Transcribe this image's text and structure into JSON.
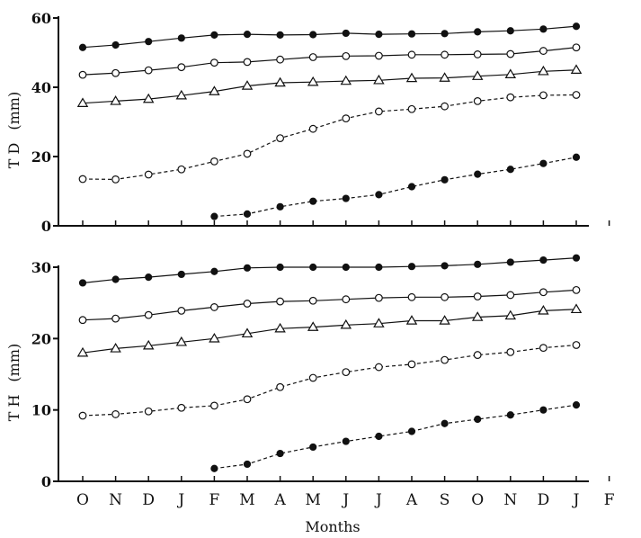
{
  "x_label": "Months",
  "x_ticks": [
    "O",
    "N",
    "D",
    "J",
    "F",
    "M",
    "A",
    "M",
    "J",
    "J",
    "A",
    "S",
    "O",
    "N",
    "D",
    "J",
    "F"
  ],
  "chart_data": [
    {
      "type": "line",
      "id": "td",
      "ylabel": "T D",
      "yunit": "(mm)",
      "ylim": [
        0,
        60
      ],
      "yticks": [
        0,
        20,
        40,
        60
      ],
      "series": [
        {
          "marker": "filled-circle",
          "line": "solid",
          "x": [
            0,
            1,
            2,
            3,
            4,
            5,
            6,
            7,
            8,
            9,
            10,
            11,
            12,
            13,
            14,
            15
          ],
          "y": [
            51.5,
            52.2,
            53.2,
            54.2,
            55.1,
            55.3,
            55.1,
            55.2,
            55.6,
            55.3,
            55.4,
            55.5,
            56,
            56.3,
            56.8,
            57.6
          ]
        },
        {
          "marker": "open-circle",
          "line": "solid",
          "x": [
            0,
            1,
            2,
            3,
            4,
            5,
            6,
            7,
            8,
            9,
            10,
            11,
            12,
            13,
            14,
            15
          ],
          "y": [
            43.6,
            44.1,
            44.9,
            45.8,
            47.1,
            47.3,
            48,
            48.7,
            49,
            49.1,
            49.4,
            49.4,
            49.5,
            49.6,
            50.5,
            51.5
          ]
        },
        {
          "marker": "open-triangle",
          "line": "solid",
          "x": [
            0,
            1,
            2,
            3,
            4,
            5,
            6,
            7,
            8,
            9,
            10,
            11,
            12,
            13,
            14,
            15
          ],
          "y": [
            35.4,
            36,
            36.6,
            37.6,
            38.8,
            40.4,
            41.3,
            41.5,
            41.8,
            42,
            42.6,
            42.7,
            43.2,
            43.7,
            44.6,
            45
          ]
        },
        {
          "marker": "open-circle",
          "line": "dashed",
          "x": [
            0,
            1,
            2,
            3,
            4,
            5,
            6,
            7,
            8,
            9,
            10,
            11,
            12,
            13,
            14,
            15
          ],
          "y": [
            13.5,
            13.4,
            14.8,
            16.3,
            18.6,
            20.8,
            25.3,
            28,
            31,
            33,
            33.7,
            34.5,
            36,
            37.1,
            37.7,
            37.8
          ]
        },
        {
          "marker": "filled-circle",
          "line": "dashed",
          "x": [
            4,
            5,
            6,
            7,
            8,
            9,
            10,
            11,
            12,
            13,
            14,
            15
          ],
          "y": [
            2.7,
            3.4,
            5.5,
            7.1,
            7.9,
            9,
            11.3,
            13.3,
            14.9,
            16.3,
            18,
            19.8
          ]
        }
      ]
    },
    {
      "type": "line",
      "id": "th",
      "ylabel": "T H",
      "yunit": "(mm)",
      "ylim": [
        0,
        30
      ],
      "yticks": [
        0,
        10,
        20,
        30
      ],
      "series": [
        {
          "marker": "filled-circle",
          "line": "solid",
          "x": [
            0,
            1,
            2,
            3,
            4,
            5,
            6,
            7,
            8,
            9,
            10,
            11,
            12,
            13,
            14,
            15
          ],
          "y": [
            27.8,
            28.3,
            28.6,
            29,
            29.4,
            29.9,
            30,
            30,
            30,
            30,
            30.1,
            30.2,
            30.4,
            30.7,
            31,
            31.3
          ]
        },
        {
          "marker": "open-circle",
          "line": "solid",
          "x": [
            0,
            1,
            2,
            3,
            4,
            5,
            6,
            7,
            8,
            9,
            10,
            11,
            12,
            13,
            14,
            15
          ],
          "y": [
            22.6,
            22.8,
            23.3,
            23.9,
            24.4,
            24.9,
            25.2,
            25.3,
            25.5,
            25.7,
            25.8,
            25.8,
            25.9,
            26.1,
            26.5,
            26.8
          ]
        },
        {
          "marker": "open-triangle",
          "line": "solid",
          "x": [
            0,
            1,
            2,
            3,
            4,
            5,
            6,
            7,
            8,
            9,
            10,
            11,
            12,
            13,
            14,
            15
          ],
          "y": [
            18,
            18.6,
            19,
            19.5,
            20,
            20.7,
            21.4,
            21.6,
            21.9,
            22.1,
            22.5,
            22.5,
            23,
            23.2,
            23.9,
            24.1
          ]
        },
        {
          "marker": "open-circle",
          "line": "dashed",
          "x": [
            0,
            1,
            2,
            3,
            4,
            5,
            6,
            7,
            8,
            9,
            10,
            11,
            12,
            13,
            14,
            15
          ],
          "y": [
            9.2,
            9.4,
            9.8,
            10.3,
            10.6,
            11.5,
            13.2,
            14.5,
            15.3,
            16,
            16.4,
            17,
            17.7,
            18.1,
            18.7,
            19.1
          ]
        },
        {
          "marker": "filled-circle",
          "line": "dashed",
          "x": [
            4,
            5,
            6,
            7,
            8,
            9,
            10,
            11,
            12,
            13,
            14,
            15
          ],
          "y": [
            1.8,
            2.4,
            3.9,
            4.8,
            5.6,
            6.3,
            7,
            8.1,
            8.7,
            9.3,
            10,
            10.7
          ]
        }
      ]
    }
  ]
}
